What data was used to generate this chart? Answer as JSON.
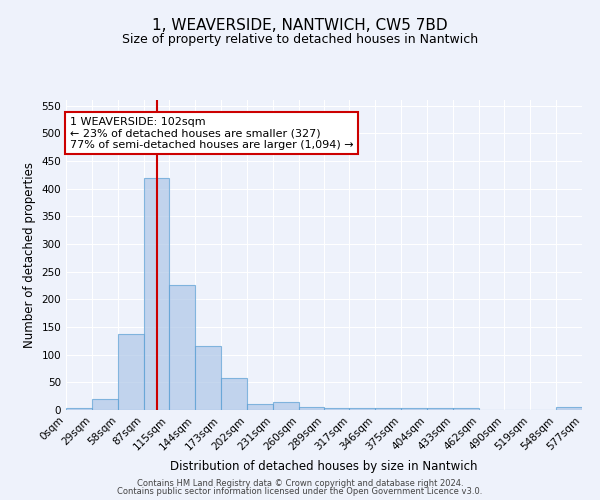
{
  "title": "1, WEAVERSIDE, NANTWICH, CW5 7BD",
  "subtitle": "Size of property relative to detached houses in Nantwich",
  "xlabel": "Distribution of detached houses by size in Nantwich",
  "ylabel": "Number of detached properties",
  "bin_edges": [
    0,
    29,
    58,
    87,
    115,
    144,
    173,
    202,
    231,
    260,
    289,
    317,
    346,
    375,
    404,
    433,
    462,
    490,
    519,
    548,
    577
  ],
  "bar_heights": [
    3,
    20,
    138,
    420,
    225,
    115,
    57,
    11,
    14,
    5,
    3,
    3,
    3,
    3,
    3,
    3,
    0,
    0,
    0,
    5
  ],
  "bar_color": "#aec6e8",
  "bar_edge_color": "#5a9fd4",
  "bar_alpha": 0.7,
  "red_line_x": 102,
  "red_line_color": "#cc0000",
  "ylim": [
    0,
    560
  ],
  "yticks": [
    0,
    50,
    100,
    150,
    200,
    250,
    300,
    350,
    400,
    450,
    500,
    550
  ],
  "background_color": "#eef2fb",
  "grid_color": "#ffffff",
  "annotation_text": "1 WEAVERSIDE: 102sqm\n← 23% of detached houses are smaller (327)\n77% of semi-detached houses are larger (1,094) →",
  "annotation_box_color": "white",
  "annotation_box_edge": "#cc0000",
  "footer_line1": "Contains HM Land Registry data © Crown copyright and database right 2024.",
  "footer_line2": "Contains public sector information licensed under the Open Government Licence v3.0.",
  "title_fontsize": 11,
  "subtitle_fontsize": 9,
  "tick_label_fontsize": 7.5,
  "axis_label_fontsize": 8.5,
  "annotation_fontsize": 8,
  "footer_fontsize": 6
}
